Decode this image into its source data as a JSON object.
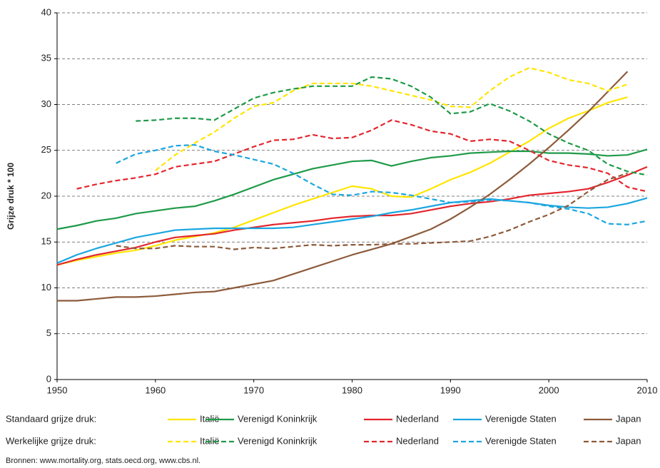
{
  "chart_data": {
    "type": "line",
    "y_label": "Grijze druk * 100",
    "source": "Bronnen: www.mortality.org, stats.oecd.org, www.cbs.nl.",
    "legend_rows": [
      "Standaard grijze druk:",
      "Werkelijke grijze druk:"
    ],
    "x": [
      1950,
      1952,
      1954,
      1956,
      1958,
      1960,
      1962,
      1964,
      1966,
      1968,
      1970,
      1972,
      1974,
      1976,
      1978,
      1980,
      1982,
      1984,
      1986,
      1988,
      1990,
      1992,
      1994,
      1996,
      1998,
      2000,
      2002,
      2004,
      2006,
      2008,
      2010
    ],
    "xlim": [
      1950,
      2010
    ],
    "xticks": [
      1950,
      1960,
      1970,
      1980,
      1990,
      2000,
      2010
    ],
    "ylim": [
      0,
      40
    ],
    "yticks": [
      0,
      5,
      10,
      15,
      20,
      25,
      30,
      35,
      40
    ],
    "grid": true,
    "series": [
      {
        "name": "Italië",
        "color": "#ffe500",
        "row": 0,
        "dash": false,
        "values": [
          12.5,
          13,
          13.4,
          13.8,
          14.1,
          14.6,
          15.2,
          15.6,
          16,
          16.6,
          17.4,
          18.2,
          19,
          19.7,
          20.4,
          21.1,
          20.8,
          20,
          19.9,
          20.8,
          21.8,
          22.6,
          23.6,
          24.8,
          26,
          27.4,
          28.5,
          29.3,
          30.2,
          30.8,
          null
        ]
      },
      {
        "name": "Verenigd Koninkrijk",
        "color": "#1e9a48",
        "row": 0,
        "dash": false,
        "values": [
          16.4,
          16.8,
          17.3,
          17.6,
          18.1,
          18.4,
          18.7,
          18.9,
          19.5,
          20.2,
          21,
          21.8,
          22.4,
          23,
          23.4,
          23.8,
          23.9,
          23.3,
          23.8,
          24.2,
          24.4,
          24.7,
          24.8,
          24.9,
          24.9,
          24.7,
          24.7,
          24.6,
          24.4,
          24.5,
          25.1
        ]
      },
      {
        "name": "Nederland",
        "color": "#e3262d",
        "row": 0,
        "dash": false,
        "values": [
          12.5,
          13.1,
          13.6,
          14,
          14.4,
          15,
          15.5,
          15.7,
          15.9,
          16.3,
          16.6,
          16.9,
          17.1,
          17.3,
          17.6,
          17.8,
          17.9,
          17.9,
          18.1,
          18.5,
          18.9,
          19.2,
          19.4,
          19.7,
          20.1,
          20.3,
          20.5,
          20.8,
          21.5,
          22.3,
          23.2
        ]
      },
      {
        "name": "Verenigde Staten",
        "color": "#1ba6e0",
        "row": 0,
        "dash": false,
        "values": [
          12.7,
          13.6,
          14.3,
          14.9,
          15.5,
          15.9,
          16.3,
          16.4,
          16.5,
          16.5,
          16.5,
          16.5,
          16.6,
          16.9,
          17.2,
          17.5,
          17.8,
          18.2,
          18.5,
          18.9,
          19.3,
          19.5,
          19.7,
          19.5,
          19.3,
          19,
          18.8,
          18.7,
          18.8,
          19.2,
          19.8
        ]
      },
      {
        "name": "Japan",
        "color": "#8d5b3b",
        "row": 0,
        "dash": false,
        "values": [
          8.6,
          8.6,
          8.8,
          9,
          9,
          9.1,
          9.3,
          9.5,
          9.6,
          10,
          10.4,
          10.8,
          11.5,
          12.2,
          12.9,
          13.6,
          14.2,
          14.8,
          15.6,
          16.4,
          17.5,
          18.8,
          20.2,
          21.8,
          23.5,
          25.3,
          27.2,
          29.2,
          31.4,
          33.6,
          null
        ]
      },
      {
        "name": "Italië",
        "color": "#ffe500",
        "row": 1,
        "dash": true,
        "values": [
          null,
          null,
          null,
          null,
          null,
          22.8,
          24.5,
          25.8,
          27,
          28.5,
          29.8,
          30.2,
          31.5,
          32.3,
          32.3,
          32.3,
          32,
          31.5,
          31,
          30.5,
          29.8,
          29.7,
          31.5,
          33,
          34,
          33.5,
          32.7,
          32.3,
          31.5,
          32.2,
          null
        ]
      },
      {
        "name": "Verenigd Koninkrijk",
        "color": "#1e9a48",
        "row": 1,
        "dash": true,
        "values": [
          null,
          null,
          null,
          null,
          28.2,
          28.3,
          28.5,
          28.5,
          28.3,
          29.5,
          30.7,
          31.3,
          31.7,
          32,
          32,
          32,
          33,
          32.8,
          32,
          30.8,
          29,
          29.2,
          30.1,
          29.3,
          28.2,
          26.8,
          25.8,
          25,
          23.5,
          22.7,
          22.3
        ]
      },
      {
        "name": "Nederland",
        "color": "#e3262d",
        "row": 1,
        "dash": true,
        "values": [
          null,
          20.8,
          21.3,
          21.7,
          22,
          22.4,
          23.2,
          23.5,
          23.8,
          24.6,
          25.4,
          26.1,
          26.2,
          26.7,
          26.3,
          26.4,
          27.2,
          28.3,
          27.8,
          27.1,
          26.8,
          26,
          26.2,
          26,
          25,
          23.9,
          23.4,
          23.1,
          22.5,
          21,
          20.5
        ]
      },
      {
        "name": "Verenigde Staten",
        "color": "#1ba6e0",
        "row": 1,
        "dash": true,
        "values": [
          null,
          null,
          null,
          23.6,
          24.6,
          25,
          25.5,
          25.6,
          24.9,
          24.5,
          24,
          23.5,
          22.5,
          21.3,
          20.2,
          20.1,
          20.5,
          20.4,
          20.1,
          19.7,
          19.3,
          19.4,
          19.6,
          19.5,
          19.3,
          18.9,
          18.6,
          18.1,
          17,
          16.9,
          17.3
        ]
      },
      {
        "name": "Japan",
        "color": "#8d5b3b",
        "row": 1,
        "dash": true,
        "values": [
          null,
          null,
          null,
          14.6,
          14.3,
          14.3,
          14.6,
          14.5,
          14.5,
          14.2,
          14.4,
          14.3,
          14.5,
          14.7,
          14.6,
          14.7,
          14.7,
          14.8,
          14.8,
          14.9,
          15,
          15.1,
          15.6,
          16.3,
          17.2,
          18,
          19,
          20.5,
          21.8,
          22.5,
          null
        ]
      }
    ]
  }
}
